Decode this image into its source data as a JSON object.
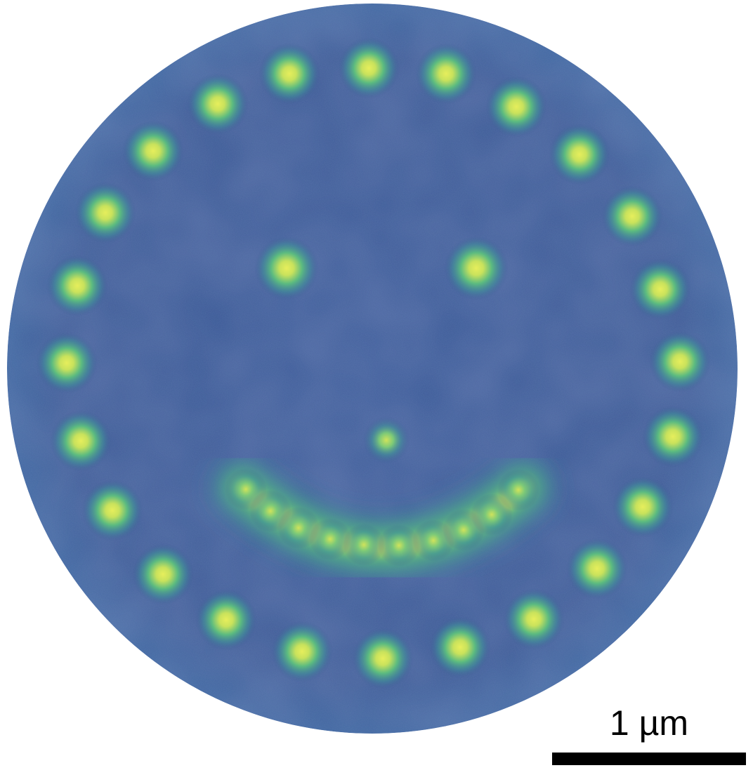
{
  "image": {
    "subject": "smiley-face-spot-pattern",
    "background_color": "#3a5a96",
    "spot_glow_color": "#3fa58b",
    "spot_core_color": "#d9e85a"
  },
  "scale_bar": {
    "label": "1 µm",
    "color": "#000000"
  }
}
